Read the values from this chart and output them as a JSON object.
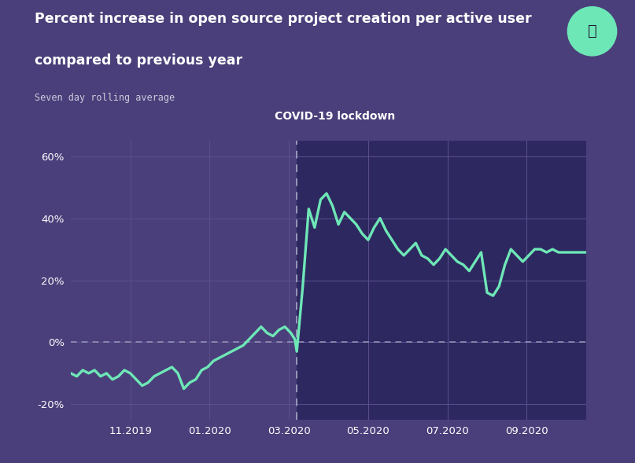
{
  "title_line1": "Percent increase in open source project creation per active user",
  "title_line2": "compared to previous year",
  "subtitle": "Seven day rolling average",
  "annotation_label": "COVID-19 lockdown",
  "bg_color": "#4a3f7a",
  "plot_bg_left": "#4a3f7a",
  "plot_bg_right": "#2e2860",
  "line_color": "#6ee7b7",
  "grid_color": "#5a5090",
  "zero_dash_color": "#9999bb",
  "lockdown_dash_color": "#9999bb",
  "text_color": "#ffffff",
  "subtitle_color": "#ccccdd",
  "teal_circle_color": "#6ee7b7",
  "ytick_labels": [
    "-20%",
    "0%",
    "20%",
    "40%",
    "60%"
  ],
  "ytick_values": [
    -20,
    0,
    20,
    40,
    60
  ],
  "xtick_labels": [
    "11.2019",
    "01.2020",
    "03.2020",
    "05.2020",
    "07.2020",
    "09.2020"
  ],
  "xtick_positions": [
    11,
    13,
    15,
    17,
    19,
    21
  ],
  "lockdown_x": 15.2,
  "xlim": [
    9.5,
    22.5
  ],
  "ylim": [
    -25,
    65
  ],
  "x": [
    9.5,
    9.65,
    9.8,
    9.95,
    10.1,
    10.25,
    10.4,
    10.55,
    10.7,
    10.85,
    11.0,
    11.15,
    11.3,
    11.45,
    11.6,
    11.75,
    11.9,
    12.05,
    12.2,
    12.35,
    12.5,
    12.65,
    12.8,
    12.95,
    13.1,
    13.25,
    13.4,
    13.55,
    13.7,
    13.85,
    14.0,
    14.15,
    14.3,
    14.45,
    14.6,
    14.75,
    14.9,
    15.05,
    15.15,
    15.2,
    15.35,
    15.5,
    15.65,
    15.8,
    15.95,
    16.1,
    16.25,
    16.4,
    16.55,
    16.7,
    16.85,
    17.0,
    17.15,
    17.3,
    17.45,
    17.6,
    17.75,
    17.9,
    18.05,
    18.2,
    18.35,
    18.5,
    18.65,
    18.8,
    18.95,
    19.1,
    19.25,
    19.4,
    19.55,
    19.7,
    19.85,
    20.0,
    20.15,
    20.3,
    20.45,
    20.6,
    20.75,
    20.9,
    21.05,
    21.2,
    21.35,
    21.5,
    21.65,
    21.8,
    22.0,
    22.2,
    22.5
  ],
  "y": [
    -10,
    -11,
    -9,
    -10,
    -9,
    -11,
    -10,
    -12,
    -11,
    -9,
    -10,
    -12,
    -14,
    -13,
    -11,
    -10,
    -9,
    -8,
    -10,
    -15,
    -13,
    -12,
    -9,
    -8,
    -6,
    -5,
    -4,
    -3,
    -2,
    -1,
    1,
    3,
    5,
    3,
    2,
    4,
    5,
    3,
    1,
    -3,
    18,
    43,
    37,
    46,
    48,
    44,
    38,
    42,
    40,
    38,
    35,
    33,
    37,
    40,
    36,
    33,
    30,
    28,
    30,
    32,
    28,
    27,
    25,
    27,
    30,
    28,
    26,
    25,
    23,
    26,
    29,
    16,
    15,
    18,
    25,
    30,
    28,
    26,
    28,
    30,
    30,
    29,
    30,
    29,
    29,
    29,
    29
  ]
}
